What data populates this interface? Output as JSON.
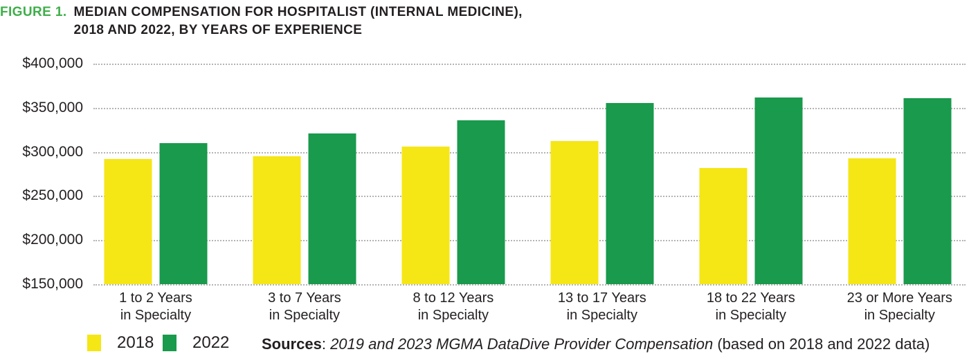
{
  "title": {
    "prefix": "FIGURE 1.",
    "line1": "MEDIAN COMPENSATION FOR HOSPITALIST (INTERNAL MEDICINE),",
    "line2": "2018 AND 2022, BY YEARS OF EXPERIENCE"
  },
  "colors": {
    "series_2018": "#F5E616",
    "series_2022": "#199A4C",
    "title_accent": "#3EAF49",
    "text": "#231F20",
    "gridline": "#B3B3B3"
  },
  "chart_data": {
    "type": "bar",
    "title": "Median compensation for hospitalist (internal medicine), 2018 and 2022, by years of experience",
    "categories": [
      {
        "line1": "1 to 2 Years",
        "line2": "in Specialty"
      },
      {
        "line1": "3 to 7 Years",
        "line2": "in Specialty"
      },
      {
        "line1": "8 to 12 Years",
        "line2": "in Specialty"
      },
      {
        "line1": "13 to 17 Years",
        "line2": "in Specialty"
      },
      {
        "line1": "18 to 22 Years",
        "line2": "in Specialty"
      },
      {
        "line1": "23 or More Years",
        "line2": "in Specialty"
      }
    ],
    "series": [
      {
        "name": "2018",
        "color": "#F5E616",
        "values": [
          292000,
          295000,
          306000,
          312000,
          282000,
          293000
        ]
      },
      {
        "name": "2022",
        "color": "#199A4C",
        "values": [
          310000,
          321000,
          336000,
          355000,
          362000,
          361000
        ]
      }
    ],
    "ylim": [
      150000,
      400000
    ],
    "ytick_step": 50000,
    "yticks_labels": [
      "$400,000",
      "$350,000",
      "$300,000",
      "$250,000",
      "$200,000",
      "$150,000"
    ],
    "grid": "horizontal-dotted",
    "legend_position": "bottom-left",
    "xlabel": "",
    "ylabel": ""
  },
  "legend": {
    "items": [
      {
        "label": "2018",
        "color_key": "series_2018"
      },
      {
        "label": "2022",
        "color_key": "series_2022"
      }
    ]
  },
  "source": {
    "label": "Sources",
    "separator": ": ",
    "body": "2019 and 2023 MGMA DataDive Provider Compensation",
    "note": " (based on 2018 and 2022 data)"
  }
}
